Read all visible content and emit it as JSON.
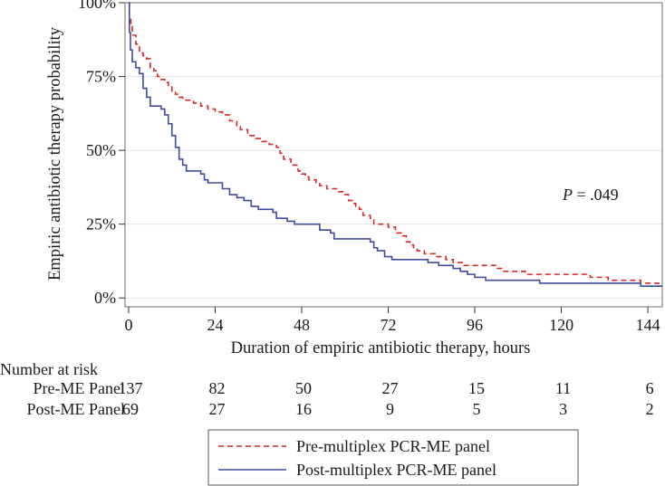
{
  "chart_data": {
    "type": "line",
    "subtype": "kaplan-meier step curve",
    "title": "",
    "xlabel": "Duration of empiric antibiotic therapy, hours",
    "ylabel": "Empiric antibiotic therapy probability",
    "xlim": [
      -1,
      148
    ],
    "ylim": [
      -0.03,
      1.0
    ],
    "x_ticks": [
      0,
      24,
      48,
      72,
      96,
      120,
      144
    ],
    "x_tick_labels": [
      "0",
      "24",
      "48",
      "72",
      "96",
      "120",
      "144"
    ],
    "y_ticks": [
      0,
      0.25,
      0.5,
      0.75,
      1.0
    ],
    "y_tick_labels": [
      "0%",
      "25%",
      "50%",
      "75%",
      "100%"
    ],
    "gridlines": "horizontal",
    "annotation": {
      "prefix": "P",
      "text": " = .049"
    },
    "series": [
      {
        "name": "Pre-multiplex PCR-ME panel",
        "color": "#d62728",
        "style": "dashed",
        "points": [
          [
            0,
            1.0
          ],
          [
            0.2,
            0.95
          ],
          [
            0.6,
            0.92
          ],
          [
            1,
            0.89
          ],
          [
            2,
            0.86
          ],
          [
            3,
            0.83
          ],
          [
            4,
            0.82
          ],
          [
            5,
            0.81
          ],
          [
            6,
            0.78
          ],
          [
            7,
            0.77
          ],
          [
            8,
            0.75
          ],
          [
            9,
            0.74
          ],
          [
            10,
            0.73
          ],
          [
            11,
            0.72
          ],
          [
            12,
            0.7
          ],
          [
            13,
            0.69
          ],
          [
            14,
            0.68
          ],
          [
            15,
            0.67
          ],
          [
            18,
            0.66
          ],
          [
            20,
            0.65
          ],
          [
            22,
            0.64
          ],
          [
            24,
            0.63
          ],
          [
            26,
            0.62
          ],
          [
            28,
            0.6
          ],
          [
            30,
            0.58
          ],
          [
            31,
            0.57
          ],
          [
            33,
            0.55
          ],
          [
            35,
            0.54
          ],
          [
            37,
            0.53
          ],
          [
            39,
            0.52
          ],
          [
            41,
            0.51
          ],
          [
            42,
            0.49
          ],
          [
            43,
            0.47
          ],
          [
            45,
            0.45
          ],
          [
            47,
            0.43
          ],
          [
            48,
            0.42
          ],
          [
            49,
            0.41
          ],
          [
            50,
            0.4
          ],
          [
            52,
            0.39
          ],
          [
            53,
            0.38
          ],
          [
            55,
            0.37
          ],
          [
            58,
            0.36
          ],
          [
            60,
            0.35
          ],
          [
            61,
            0.33
          ],
          [
            62,
            0.32
          ],
          [
            63,
            0.31
          ],
          [
            64,
            0.3
          ],
          [
            65,
            0.28
          ],
          [
            67,
            0.27
          ],
          [
            68,
            0.25
          ],
          [
            70,
            0.25
          ],
          [
            72,
            0.24
          ],
          [
            74,
            0.22
          ],
          [
            76,
            0.21
          ],
          [
            77,
            0.19
          ],
          [
            78,
            0.18
          ],
          [
            79,
            0.17
          ],
          [
            80,
            0.16
          ],
          [
            82,
            0.15
          ],
          [
            85,
            0.14
          ],
          [
            88,
            0.13
          ],
          [
            90,
            0.12
          ],
          [
            93,
            0.11
          ],
          [
            102,
            0.1
          ],
          [
            104,
            0.09
          ],
          [
            110,
            0.08
          ],
          [
            128,
            0.07
          ],
          [
            133,
            0.06
          ],
          [
            142,
            0.05
          ],
          [
            147,
            0.04
          ],
          [
            148,
            0.04
          ]
        ]
      },
      {
        "name": "Post-multiplex PCR-ME panel",
        "color": "#3f4c9e",
        "style": "solid",
        "points": [
          [
            0,
            1.0
          ],
          [
            0.2,
            0.9
          ],
          [
            0.5,
            0.84
          ],
          [
            1,
            0.8
          ],
          [
            2,
            0.78
          ],
          [
            3,
            0.76
          ],
          [
            4,
            0.71
          ],
          [
            5,
            0.68
          ],
          [
            6,
            0.65
          ],
          [
            9,
            0.64
          ],
          [
            10,
            0.62
          ],
          [
            11,
            0.59
          ],
          [
            12,
            0.55
          ],
          [
            13,
            0.51
          ],
          [
            14,
            0.47
          ],
          [
            15,
            0.45
          ],
          [
            16,
            0.43
          ],
          [
            20,
            0.42
          ],
          [
            21,
            0.4
          ],
          [
            22,
            0.39
          ],
          [
            26,
            0.37
          ],
          [
            28,
            0.35
          ],
          [
            30,
            0.34
          ],
          [
            32,
            0.33
          ],
          [
            34,
            0.31
          ],
          [
            36,
            0.3
          ],
          [
            40,
            0.29
          ],
          [
            41,
            0.27
          ],
          [
            44,
            0.26
          ],
          [
            46,
            0.25
          ],
          [
            53,
            0.23
          ],
          [
            56,
            0.22
          ],
          [
            57,
            0.2
          ],
          [
            67,
            0.19
          ],
          [
            68,
            0.17
          ],
          [
            69,
            0.16
          ],
          [
            71,
            0.14
          ],
          [
            73,
            0.13
          ],
          [
            83,
            0.12
          ],
          [
            86,
            0.11
          ],
          [
            90,
            0.1
          ],
          [
            92,
            0.09
          ],
          [
            94,
            0.08
          ],
          [
            96,
            0.07
          ],
          [
            99,
            0.06
          ],
          [
            114,
            0.05
          ],
          [
            142,
            0.04
          ],
          [
            148,
            0.04
          ]
        ]
      }
    ],
    "legend": {
      "position": "bottom",
      "entries": [
        "Pre-multiplex PCR-ME panel",
        "Post-multiplex PCR-ME panel"
      ]
    },
    "risk_table": {
      "title": "Number at risk",
      "times": [
        0,
        24,
        48,
        72,
        96,
        120,
        144
      ],
      "rows": [
        {
          "label": "Pre-ME Panel",
          "values": [
            "137",
            "82",
            "50",
            "27",
            "15",
            "11",
            "6"
          ]
        },
        {
          "label": "Post-ME Panel",
          "values": [
            "69",
            "27",
            "16",
            "9",
            "5",
            "3",
            "2"
          ]
        }
      ]
    }
  }
}
